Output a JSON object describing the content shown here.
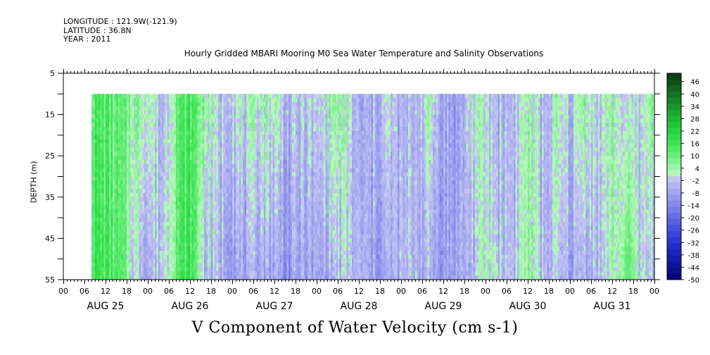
{
  "header": {
    "longitude": "LONGITUDE : 121.9W(-121.9)",
    "latitude": "LATITUDE : 36.8N",
    "year": "YEAR : 2011"
  },
  "title": "Hourly Gridded MBARI Mooring M0 Sea Water Temperature and Salinity Observations",
  "chart_data": {
    "type": "heatmap",
    "title": "V Component of Water Velocity (cm s-1)",
    "ylabel": "DEPTH (m)",
    "y_ticks": [
      5,
      15,
      25,
      35,
      45,
      55
    ],
    "ylim": [
      5,
      55
    ],
    "y_inverted": true,
    "data_depth_range": [
      10,
      55
    ],
    "x_hour_ticks": [
      "00",
      "06",
      "12",
      "18",
      "00",
      "06",
      "12",
      "18",
      "00",
      "06",
      "12",
      "18",
      "00",
      "06",
      "12",
      "18",
      "00",
      "06",
      "12",
      "18",
      "00",
      "06",
      "12",
      "18",
      "00",
      "06",
      "12",
      "18",
      "00"
    ],
    "x_day_labels": [
      "AUG 25",
      "AUG 26",
      "AUG 27",
      "AUG 28",
      "AUG 29",
      "AUG 30",
      "AUG 31"
    ],
    "x_range_hours": [
      0,
      168
    ],
    "data_start_hour": 8,
    "colorbar": {
      "labels": [
        "46",
        "40",
        "34",
        "28",
        "22",
        "16",
        "10",
        "4",
        "-2",
        "-8",
        "-14",
        "-20",
        "-26",
        "-32",
        "-38",
        "-44",
        "-50"
      ],
      "range": [
        -50,
        50
      ],
      "levels_colors": [
        {
          "value": 49,
          "color": "#0a3d12"
        },
        {
          "value": 46,
          "color": "#0f4f18"
        },
        {
          "value": 43,
          "color": "#12611d"
        },
        {
          "value": 40,
          "color": "#157323"
        },
        {
          "value": 37,
          "color": "#178427"
        },
        {
          "value": 34,
          "color": "#1a962c"
        },
        {
          "value": 31,
          "color": "#1ca731"
        },
        {
          "value": 28,
          "color": "#1fb636"
        },
        {
          "value": 25,
          "color": "#22c53a"
        },
        {
          "value": 22,
          "color": "#27d43f"
        },
        {
          "value": 19,
          "color": "#2fdd47"
        },
        {
          "value": 16,
          "color": "#3ee355"
        },
        {
          "value": 13,
          "color": "#52e866"
        },
        {
          "value": 10,
          "color": "#68ec79"
        },
        {
          "value": 7,
          "color": "#82f08f"
        },
        {
          "value": 4,
          "color": "#9df3a7"
        },
        {
          "value": 1,
          "color": "#b5f5bc"
        },
        {
          "value": -2,
          "color": "#c2c4f4"
        },
        {
          "value": -5,
          "color": "#b2b5f1"
        },
        {
          "value": -8,
          "color": "#a3a7ee"
        },
        {
          "value": -11,
          "color": "#9499ec"
        },
        {
          "value": -14,
          "color": "#858ae9"
        },
        {
          "value": -17,
          "color": "#767ce6"
        },
        {
          "value": -20,
          "color": "#676ee3"
        },
        {
          "value": -23,
          "color": "#5860e0"
        },
        {
          "value": -26,
          "color": "#4952dc"
        },
        {
          "value": -29,
          "color": "#3a44d8"
        },
        {
          "value": -32,
          "color": "#2d38d2"
        },
        {
          "value": -35,
          "color": "#222dc8"
        },
        {
          "value": -38,
          "color": "#1a24ba"
        },
        {
          "value": -41,
          "color": "#141caa"
        },
        {
          "value": -44,
          "color": "#0f159a"
        },
        {
          "value": -47,
          "color": "#0a0f8a"
        },
        {
          "value": -50,
          "color": "#06097a"
        }
      ]
    },
    "column_profiles": {
      "note_hours": "hour index from AUG 25 00",
      "hours": [
        8,
        12,
        16,
        20,
        24,
        28,
        32,
        36,
        40,
        44,
        48,
        52,
        56,
        60,
        64,
        68,
        72,
        76,
        80,
        84,
        88,
        92,
        96,
        100,
        104,
        108,
        112,
        116,
        120,
        124,
        128,
        132,
        136,
        140,
        144,
        148,
        152,
        156,
        160,
        164,
        168
      ],
      "surface_v": [
        14,
        12,
        8,
        6,
        4,
        -6,
        10,
        14,
        6,
        -4,
        2,
        -2,
        4,
        2,
        -6,
        -2,
        -4,
        6,
        2,
        -10,
        -6,
        -2,
        -8,
        -4,
        2,
        -8,
        -10,
        2,
        -2,
        -6,
        -4,
        4,
        -6,
        2,
        -4,
        6,
        -2,
        4,
        -4,
        -2,
        8
      ],
      "bottom_v": [
        16,
        14,
        10,
        -2,
        -6,
        -2,
        12,
        16,
        -4,
        -6,
        -8,
        -10,
        -6,
        -8,
        -12,
        -8,
        -10,
        -6,
        -4,
        -6,
        -10,
        -8,
        -6,
        -4,
        -8,
        -10,
        -8,
        -6,
        2,
        -2,
        -4,
        6,
        -6,
        -4,
        -8,
        -6,
        -4,
        2,
        10,
        -2,
        -4
      ]
    }
  }
}
